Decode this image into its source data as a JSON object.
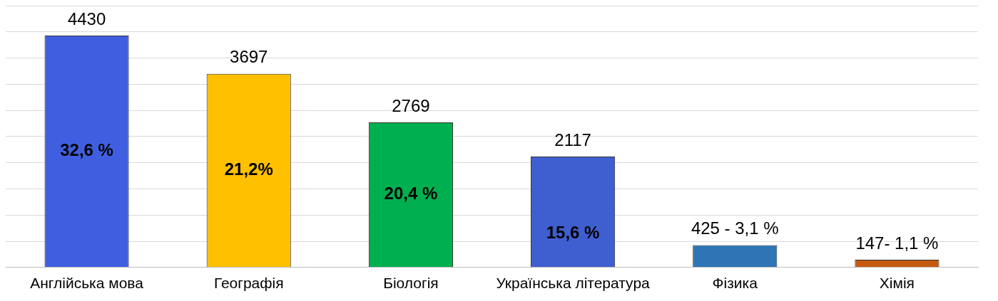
{
  "chart_data": {
    "type": "bar",
    "categories": [
      "Англійська мова",
      "Географія",
      "Біологія",
      "Українська література",
      "Фізика",
      "Хімія"
    ],
    "values": [
      4430,
      3697,
      2769,
      2117,
      425,
      147
    ],
    "colors": [
      "#3f5fe0",
      "#ffc000",
      "#00b050",
      "#3f5fd0",
      "#2e75b6",
      "#c55a11"
    ],
    "value_labels": [
      "4430",
      "3697",
      "2769",
      "2117",
      "425 - 3,1 %",
      "147- 1,1 %"
    ],
    "annotations": [
      "32,6 %",
      "21,2%",
      "20,4 %",
      "15,6 %"
    ],
    "ylim": [
      0,
      5000
    ],
    "yticks": [
      {
        "value": 0,
        "label": null
      },
      {
        "value": 500,
        "label": null
      },
      {
        "value": 1000,
        "label": null
      },
      {
        "value": 1500,
        "label": null
      },
      {
        "value": 2000,
        "label": null
      },
      {
        "value": 2500,
        "label": null
      },
      {
        "value": 3000,
        "label": null
      },
      {
        "value": 3500,
        "label": null
      },
      {
        "value": 4000,
        "label": null
      },
      {
        "value": 4500,
        "label": null
      },
      {
        "value": 5000,
        "label": null
      }
    ],
    "grid": "y",
    "tick_labels": "x",
    "legend": false
  }
}
